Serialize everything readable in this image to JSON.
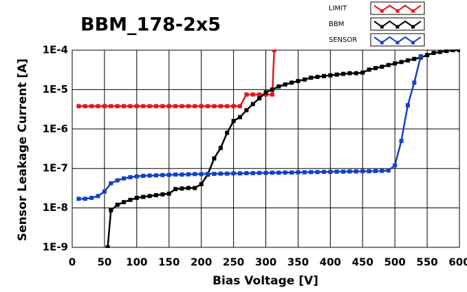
{
  "chart_data": {
    "type": "line",
    "title": "BBM_178-2x5",
    "x_label": "Bias Voltage [V]",
    "y_label": "Sensor Leakage Current [A]",
    "xlim": [
      0,
      600
    ],
    "xticks": [
      0,
      50,
      100,
      150,
      200,
      250,
      300,
      350,
      400,
      450,
      500,
      550,
      600
    ],
    "ylim": [
      1e-09,
      0.0001
    ],
    "y_scale": "log",
    "yticks": [
      {
        "value": 1e-09,
        "label": "1E-9"
      },
      {
        "value": 1e-08,
        "label": "1E-8"
      },
      {
        "value": 1e-07,
        "label": "1E-7"
      },
      {
        "value": 1e-06,
        "label": "1E-6"
      },
      {
        "value": 1e-05,
        "label": "1E-5"
      },
      {
        "value": 0.0001,
        "label": "1E-4"
      }
    ],
    "grid": true,
    "legend": "top-right",
    "series": [
      {
        "name": "LIMIT",
        "color": "#e8141c",
        "x": [
          10,
          20,
          30,
          40,
          50,
          60,
          70,
          80,
          90,
          100,
          110,
          120,
          130,
          140,
          150,
          160,
          170,
          180,
          190,
          200,
          210,
          220,
          230,
          240,
          250,
          260,
          270,
          280,
          290,
          300,
          310,
          313
        ],
        "values": [
          3.8e-06,
          3.8e-06,
          3.8e-06,
          3.8e-06,
          3.8e-06,
          3.8e-06,
          3.8e-06,
          3.8e-06,
          3.8e-06,
          3.8e-06,
          3.8e-06,
          3.8e-06,
          3.8e-06,
          3.8e-06,
          3.8e-06,
          3.8e-06,
          3.8e-06,
          3.8e-06,
          3.8e-06,
          3.8e-06,
          3.8e-06,
          3.8e-06,
          3.8e-06,
          3.8e-06,
          3.8e-06,
          3.8e-06,
          7.5e-06,
          7.5e-06,
          7.5e-06,
          7.5e-06,
          7.5e-06,
          0.0001
        ]
      },
      {
        "name": "BBM",
        "color": "#000000",
        "x": [
          55,
          60,
          70,
          80,
          90,
          100,
          110,
          120,
          130,
          140,
          150,
          160,
          170,
          180,
          190,
          200,
          210,
          220,
          230,
          240,
          250,
          260,
          270,
          280,
          290,
          300,
          310,
          320,
          330,
          340,
          350,
          360,
          370,
          380,
          390,
          400,
          410,
          420,
          430,
          440,
          450,
          460,
          470,
          480,
          490,
          500,
          510,
          520,
          530,
          540,
          550,
          560,
          570,
          580,
          590,
          600
        ],
        "values": [
          1e-09,
          8.7e-09,
          1.2e-08,
          1.4e-08,
          1.6e-08,
          1.8e-08,
          1.9e-08,
          2e-08,
          2.1e-08,
          2.2e-08,
          2.3e-08,
          3e-08,
          3.1e-08,
          3.2e-08,
          3.2e-08,
          4e-08,
          7e-08,
          1.8e-07,
          3.3e-07,
          8e-07,
          1.6e-06,
          2e-06,
          3e-06,
          4.3e-06,
          6e-06,
          8.5e-06,
          1e-05,
          1.2e-05,
          1.35e-05,
          1.5e-05,
          1.65e-05,
          1.8e-05,
          2e-05,
          2.1e-05,
          2.2e-05,
          2.3e-05,
          2.4e-05,
          2.5e-05,
          2.6e-05,
          2.6e-05,
          2.7e-05,
          3.2e-05,
          3.5e-05,
          3.8e-05,
          4.2e-05,
          4.6e-05,
          5e-05,
          5.5e-05,
          6e-05,
          6.5e-05,
          7.5e-05,
          8.5e-05,
          9e-05,
          9.5e-05,
          0.0001,
          0.0001
        ]
      },
      {
        "name": "SENSOR",
        "color": "#1440c8",
        "x": [
          10,
          20,
          30,
          40,
          50,
          60,
          70,
          80,
          90,
          100,
          110,
          120,
          130,
          140,
          150,
          160,
          170,
          180,
          190,
          200,
          210,
          220,
          230,
          240,
          250,
          260,
          270,
          280,
          290,
          300,
          310,
          320,
          330,
          340,
          350,
          360,
          370,
          380,
          390,
          400,
          410,
          420,
          430,
          440,
          450,
          460,
          470,
          480,
          490,
          500,
          510,
          520,
          530,
          540
        ],
        "values": [
          1.7e-08,
          1.7e-08,
          1.8e-08,
          2e-08,
          2.6e-08,
          4.2e-08,
          5e-08,
          5.6e-08,
          6e-08,
          6.3e-08,
          6.5e-08,
          6.6e-08,
          6.7e-08,
          6.8e-08,
          6.9e-08,
          7e-08,
          7e-08,
          7.1e-08,
          7.2e-08,
          7.2e-08,
          7.3e-08,
          7.3e-08,
          7.4e-08,
          7.4e-08,
          7.5e-08,
          7.5e-08,
          7.6e-08,
          7.6e-08,
          7.7e-08,
          7.7e-08,
          7.8e-08,
          7.8e-08,
          7.9e-08,
          7.9e-08,
          8e-08,
          8e-08,
          8.1e-08,
          8.1e-08,
          8.2e-08,
          8.2e-08,
          8.3e-08,
          8.3e-08,
          8.4e-08,
          8.4e-08,
          8.5e-08,
          8.5e-08,
          8.6e-08,
          8.7e-08,
          8.9e-08,
          1.2e-07,
          5e-07,
          4e-06,
          1.5e-05,
          7e-05
        ]
      }
    ]
  }
}
